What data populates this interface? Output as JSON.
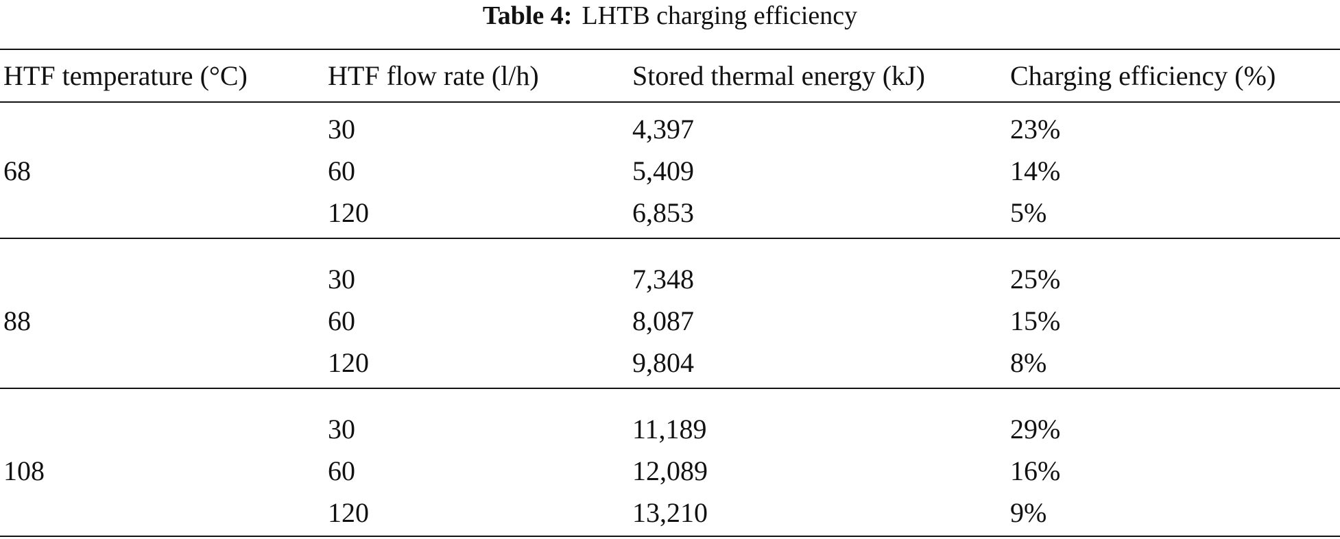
{
  "table": {
    "caption_label": "Table 4:",
    "caption_title": "LHTB charging efficiency",
    "headers": [
      "HTF temperature (°C)",
      "HTF flow rate (l/h)",
      "Stored thermal energy (kJ)",
      "Charging efficiency (%)"
    ],
    "groups": [
      {
        "temperature": "68",
        "rows": [
          {
            "flow": "30",
            "energy": "4,397",
            "efficiency": "23%"
          },
          {
            "flow": "60",
            "energy": "5,409",
            "efficiency": "14%"
          },
          {
            "flow": "120",
            "energy": "6,853",
            "efficiency": "5%"
          }
        ]
      },
      {
        "temperature": "88",
        "rows": [
          {
            "flow": "30",
            "energy": "7,348",
            "efficiency": "25%"
          },
          {
            "flow": "60",
            "energy": "8,087",
            "efficiency": "15%"
          },
          {
            "flow": "120",
            "energy": "9,804",
            "efficiency": "8%"
          }
        ]
      },
      {
        "temperature": "108",
        "rows": [
          {
            "flow": "30",
            "energy": "11,189",
            "efficiency": "29%"
          },
          {
            "flow": "60",
            "energy": "12,089",
            "efficiency": "16%"
          },
          {
            "flow": "120",
            "energy": "13,210",
            "efficiency": "9%"
          }
        ]
      }
    ]
  }
}
